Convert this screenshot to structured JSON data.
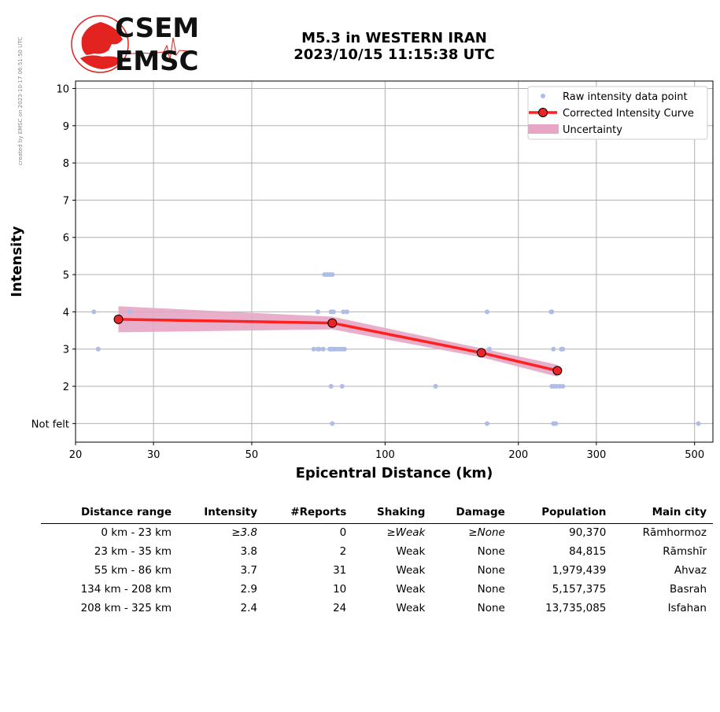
{
  "credit": "created by EMSC on 2023-10-17 06:51:50 UTC",
  "header": {
    "title_line1": "M5.3 in WESTERN IRAN",
    "title_line2": "2023/10/15 11:15:38 UTC"
  },
  "logo": {
    "top": "CSEM",
    "bottom": "EMSC"
  },
  "colors": {
    "raw": "#aebde8",
    "curve": "#ff2020",
    "marker_fill": "#e8262a",
    "uncertainty": "#e6a6c4",
    "grid": "#b0b0b0",
    "logo_red": "#e3231f"
  },
  "chart_data": {
    "type": "scatter",
    "xlabel": "Epicentral Distance (km)",
    "ylabel": "Intensity",
    "xscale": "log",
    "xlim": [
      20,
      550
    ],
    "ylim": [
      0.5,
      10.2
    ],
    "xticks": [
      20,
      30,
      50,
      100,
      200,
      300,
      500
    ],
    "yticks": [
      1,
      2,
      3,
      4,
      5,
      6,
      7,
      8,
      9,
      10
    ],
    "ytick_labels": [
      "Not felt",
      "2",
      "3",
      "4",
      "5",
      "6",
      "7",
      "8",
      "9",
      "10"
    ],
    "grid": true,
    "legend_position": "top-right",
    "legend": [
      "Raw intensity data point",
      "Corrected Intensity Curve",
      "Uncertainty"
    ],
    "raw_points": [
      [
        22,
        4
      ],
      [
        22.5,
        3
      ],
      [
        26.5,
        4
      ],
      [
        69,
        3
      ],
      [
        70.5,
        4
      ],
      [
        70.5,
        3
      ],
      [
        71,
        3
      ],
      [
        72.5,
        3
      ],
      [
        73,
        5
      ],
      [
        74,
        5
      ],
      [
        75,
        5
      ],
      [
        76,
        5
      ],
      [
        75,
        3
      ],
      [
        75.5,
        3
      ],
      [
        76,
        3
      ],
      [
        76.5,
        3
      ],
      [
        77,
        3
      ],
      [
        78,
        3
      ],
      [
        79,
        3
      ],
      [
        80,
        3
      ],
      [
        81,
        3
      ],
      [
        75.5,
        4
      ],
      [
        76.5,
        4
      ],
      [
        80.5,
        4
      ],
      [
        82,
        4
      ],
      [
        75.5,
        2
      ],
      [
        80,
        2
      ],
      [
        76,
        1
      ],
      [
        130,
        2
      ],
      [
        170,
        4
      ],
      [
        170,
        1
      ],
      [
        172,
        3
      ],
      [
        237,
        4
      ],
      [
        238,
        4
      ],
      [
        240,
        3
      ],
      [
        238,
        2
      ],
      [
        241,
        2
      ],
      [
        244,
        2
      ],
      [
        248,
        2
      ],
      [
        250,
        3
      ],
      [
        252,
        3
      ],
      [
        252,
        2
      ],
      [
        240,
        1
      ],
      [
        243,
        1
      ],
      [
        510,
        1
      ]
    ],
    "curve": {
      "x": [
        25,
        76,
        165,
        245
      ],
      "y": [
        3.8,
        3.7,
        2.9,
        2.42
      ]
    },
    "uncertainty": {
      "x": [
        25,
        76,
        165,
        245
      ],
      "upper": [
        4.15,
        3.87,
        3.02,
        2.58
      ],
      "lower": [
        3.45,
        3.53,
        2.78,
        2.26
      ]
    }
  },
  "summary_table": {
    "headers": [
      "Distance range",
      "Intensity",
      "#Reports",
      "Shaking",
      "Damage",
      "Population",
      "Main city"
    ],
    "rows": [
      [
        "0 km -   23 km",
        "≥3.8",
        "0",
        "≥Weak",
        "≥None",
        "90,370",
        "Rāmhormoz"
      ],
      [
        "23 km -   35 km",
        "3.8",
        "2",
        "Weak",
        "None",
        "84,815",
        "Rāmshīr"
      ],
      [
        "55 km -   86 km",
        "3.7",
        "31",
        "Weak",
        "None",
        "1,979,439",
        "Ahvaz"
      ],
      [
        "134 km -  208 km",
        "2.9",
        "10",
        "Weak",
        "None",
        "5,157,375",
        "Basrah"
      ],
      [
        "208 km -  325 km",
        "2.4",
        "24",
        "Weak",
        "None",
        "13,735,085",
        "Isfahan"
      ]
    ]
  }
}
